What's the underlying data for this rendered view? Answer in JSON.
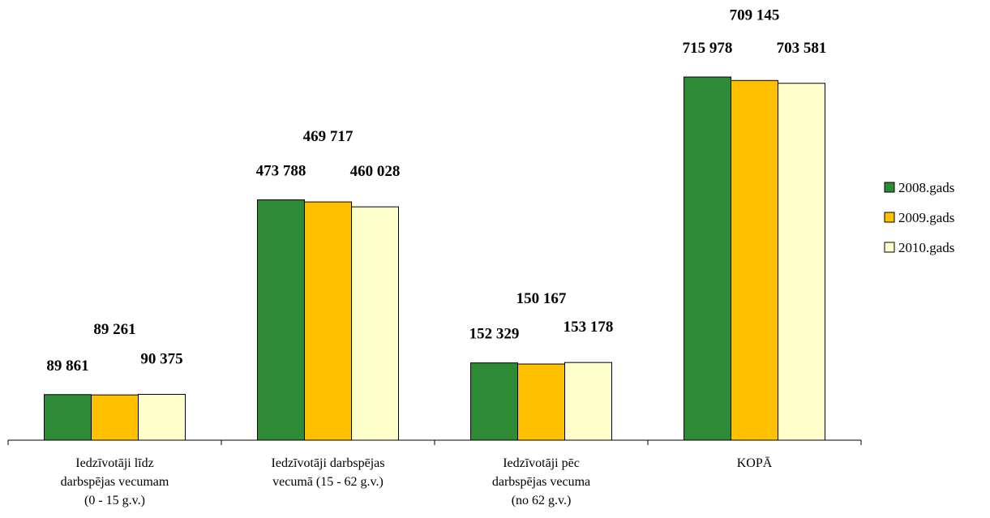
{
  "chart_data": {
    "type": "bar",
    "title": "",
    "xlabel": "",
    "ylabel": "",
    "ylim": [
      0,
      800000
    ],
    "grid": false,
    "legend_position": "right",
    "categories": [
      [
        "Iedzīvotāji līdz",
        "darbspējas vecumam",
        "(0 - 15 g.v.)"
      ],
      [
        "Iedzīvotāji darbspējas",
        "vecumā (15 - 62 g.v.)"
      ],
      [
        "Iedzīvotāji pēc",
        "darbspējas vecuma",
        "(no 62 g.v.)"
      ],
      [
        "KOPĀ"
      ]
    ],
    "series": [
      {
        "name": "2008.gads",
        "color": "#2e8b35",
        "values": [
          89861,
          473788,
          152329,
          715978
        ],
        "labels": [
          "89 861",
          "473 788",
          "152 329",
          "715 978"
        ]
      },
      {
        "name": "2009.gads",
        "color": "#ffc000",
        "values": [
          89261,
          469717,
          150167,
          709145
        ],
        "labels": [
          "89 261",
          "469 717",
          "150 167",
          "709 145"
        ]
      },
      {
        "name": "2010.gads",
        "color": "#ffffcc",
        "values": [
          90375,
          460028,
          153178,
          703581
        ],
        "labels": [
          "90 375",
          "460 028",
          "153 178",
          "703 581"
        ]
      }
    ]
  }
}
